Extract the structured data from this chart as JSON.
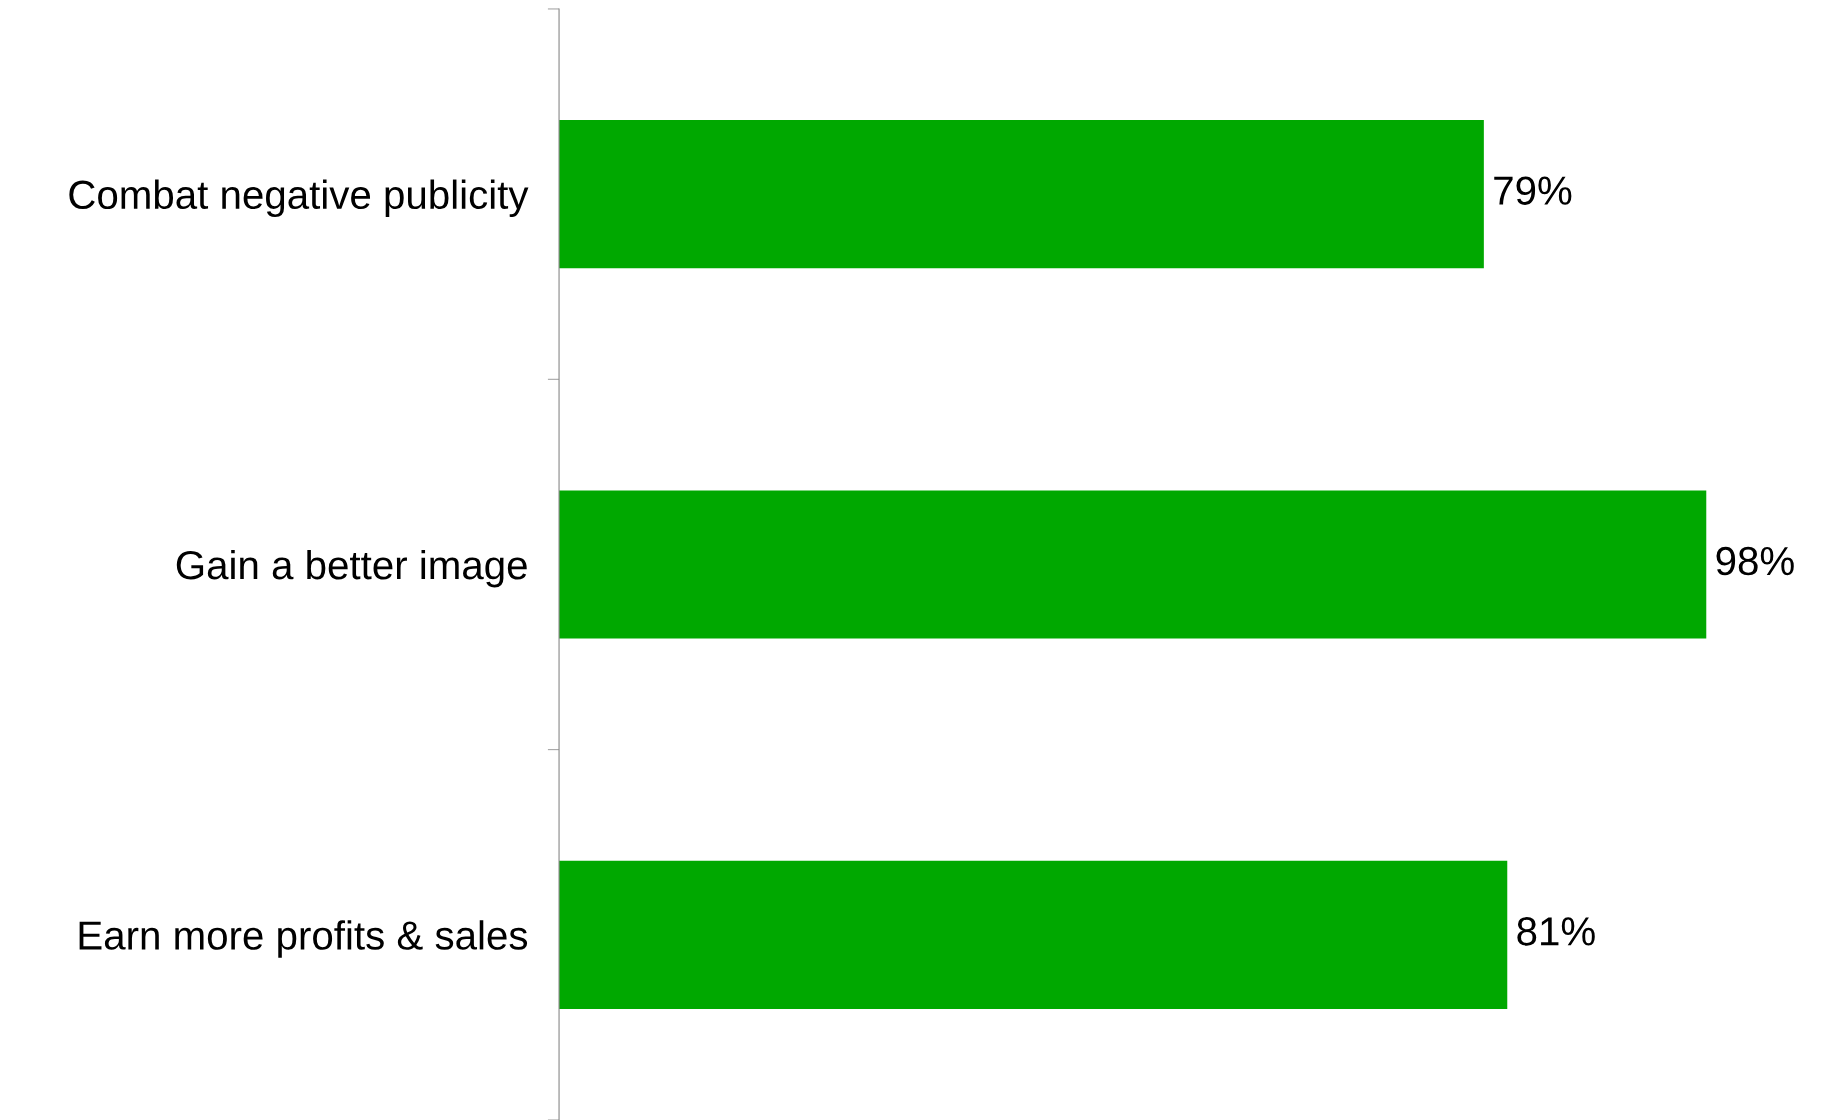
{
  "chart_data": {
    "type": "bar",
    "orientation": "horizontal",
    "categories": [
      "Combat negative publicity",
      "Gain a better image",
      "Earn more profits & sales"
    ],
    "values": [
      79,
      98,
      81
    ],
    "value_labels": [
      "79%",
      "98%",
      "81%"
    ],
    "color": "#00a800",
    "grid": false,
    "legend": false
  }
}
